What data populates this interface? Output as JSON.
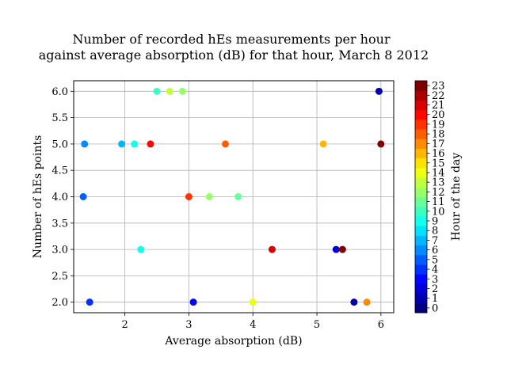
{
  "chart_data": {
    "type": "scatter",
    "title_lines": [
      "Number of recorded hEs measurements per hour",
      "against average absorption (dB) for that hour, March 8 2012"
    ],
    "xlabel": "Average absorption (dB)",
    "ylabel": "Number of hEs points",
    "xlim": [
      1.2,
      6.2
    ],
    "ylim": [
      1.8,
      6.2
    ],
    "xticks": [
      2,
      3,
      4,
      5,
      6
    ],
    "xtick_labels": [
      "2",
      "3",
      "4",
      "5",
      "6"
    ],
    "yticks": [
      2.0,
      2.5,
      3.0,
      3.5,
      4.0,
      4.5,
      5.0,
      5.5,
      6.0
    ],
    "ytick_labels": [
      "2.0",
      "2.5",
      "3.0",
      "3.5",
      "4.0",
      "4.5",
      "5.0",
      "5.5",
      "6.0"
    ],
    "grid": true,
    "colormap": "jet",
    "colorbar": {
      "label": "Hour of the day",
      "min": 0,
      "max": 23,
      "tick_labels": [
        "0",
        "1",
        "2",
        "3",
        "4",
        "5",
        "6",
        "7",
        "8",
        "9",
        "10",
        "11",
        "12",
        "13",
        "14",
        "15",
        "16",
        "17",
        "18",
        "19",
        "20",
        "21",
        "22",
        "23"
      ]
    },
    "points": [
      {
        "x": 1.37,
        "y": 5.0,
        "hour": 6
      },
      {
        "x": 1.35,
        "y": 4.0,
        "hour": 5
      },
      {
        "x": 1.45,
        "y": 2.0,
        "hour": 4
      },
      {
        "x": 1.95,
        "y": 5.0,
        "hour": 7
      },
      {
        "x": 2.15,
        "y": 5.0,
        "hour": 9
      },
      {
        "x": 2.25,
        "y": 3.0,
        "hour": 9
      },
      {
        "x": 2.4,
        "y": 5.0,
        "hour": 20
      },
      {
        "x": 2.5,
        "y": 6.0,
        "hour": 10
      },
      {
        "x": 2.7,
        "y": 6.0,
        "hour": 13
      },
      {
        "x": 2.9,
        "y": 6.0,
        "hour": 12
      },
      {
        "x": 3.0,
        "y": 4.0,
        "hour": 19
      },
      {
        "x": 3.07,
        "y": 2.0,
        "hour": 3
      },
      {
        "x": 3.32,
        "y": 4.0,
        "hour": 12
      },
      {
        "x": 3.57,
        "y": 5.0,
        "hour": 18
      },
      {
        "x": 3.77,
        "y": 4.0,
        "hour": 11
      },
      {
        "x": 4.0,
        "y": 2.0,
        "hour": 14
      },
      {
        "x": 4.3,
        "y": 3.0,
        "hour": 21
      },
      {
        "x": 5.1,
        "y": 5.0,
        "hour": 16
      },
      {
        "x": 5.3,
        "y": 3.0,
        "hour": 2
      },
      {
        "x": 5.4,
        "y": 3.0,
        "hour": 23
      },
      {
        "x": 5.58,
        "y": 2.0,
        "hour": 1
      },
      {
        "x": 5.78,
        "y": 2.0,
        "hour": 17
      },
      {
        "x": 5.97,
        "y": 6.0,
        "hour": 1
      },
      {
        "x": 6.0,
        "y": 5.0,
        "hour": 23
      }
    ]
  }
}
